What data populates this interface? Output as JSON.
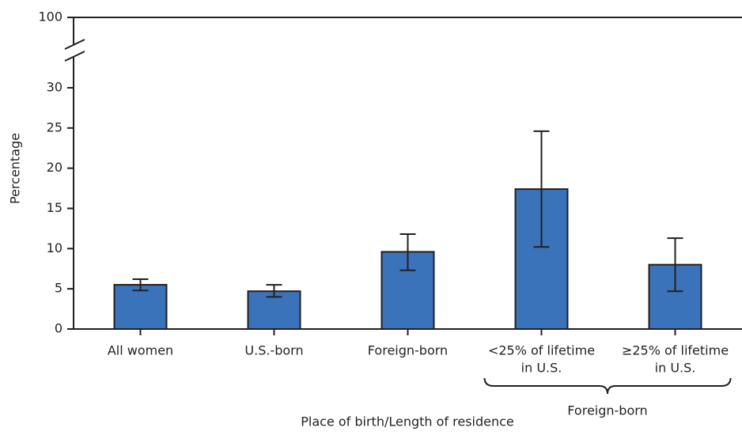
{
  "chart_data": {
    "type": "bar",
    "x_label": "Place of birth/Length  of residence",
    "y_label": "Percentage",
    "categories": [
      [
        "All women"
      ],
      [
        "U.S.-born"
      ],
      [
        "Foreign-born"
      ],
      [
        "<25% of lifetime",
        "in U.S."
      ],
      [
        "≥25% of lifetime",
        "in U.S."
      ]
    ],
    "values": [
      5.5,
      4.7,
      9.6,
      17.4,
      8.0
    ],
    "ci_lower": [
      4.8,
      4.0,
      7.3,
      10.2,
      4.7
    ],
    "ci_upper": [
      6.2,
      5.5,
      11.8,
      24.6,
      11.3
    ],
    "color": "#3a73ba",
    "ylim": [
      0,
      100
    ],
    "yticks": [
      0,
      5,
      10,
      15,
      20,
      25,
      30,
      100
    ],
    "axis_break": [
      30,
      100
    ],
    "category_groups": [
      {
        "label": "Foreign-born",
        "members": [
          3,
          4
        ]
      }
    ]
  }
}
